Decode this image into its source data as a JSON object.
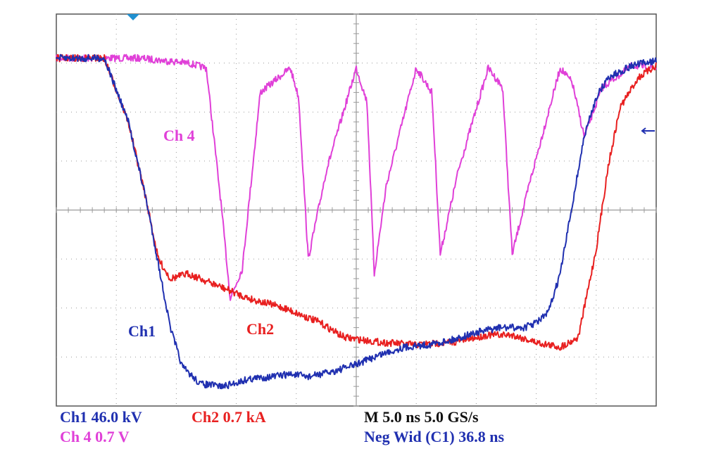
{
  "chart_data": {
    "type": "line",
    "title": "",
    "xlabel": "",
    "ylabel": "",
    "grid": true,
    "divisions": {
      "x": 10,
      "y": 8
    },
    "xlim": [
      0,
      50
    ],
    "x_unit": "ns",
    "ylim": [
      -4,
      4
    ],
    "y_unit": "div",
    "series": [
      {
        "name": "Ch 4",
        "color": "#e040d8",
        "x": [
          0,
          7,
          11,
          12.5,
          13.7,
          14.5,
          15.5,
          17,
          19.5,
          20.2,
          21,
          22.5,
          25,
          25.9,
          26.5,
          27.5,
          30,
          31.3,
          32,
          33.5,
          36,
          37.2,
          38,
          39.5,
          42,
          43,
          44,
          45.5,
          48,
          50
        ],
        "y": [
          3.1,
          3.1,
          3.0,
          2.9,
          0.2,
          -1.8,
          -1.2,
          2.4,
          2.9,
          2.3,
          -1.0,
          0.8,
          2.9,
          2.2,
          -1.3,
          0.5,
          2.9,
          2.4,
          -0.9,
          0.8,
          2.9,
          2.5,
          -0.9,
          0.6,
          2.9,
          2.6,
          1.5,
          2.5,
          2.95,
          2.9
        ]
      },
      {
        "name": "Ch2",
        "color": "#e82020",
        "x": [
          0,
          4,
          6,
          7.5,
          8.5,
          9.5,
          11,
          13,
          16,
          19,
          22,
          24,
          27,
          30,
          33,
          36,
          38,
          40,
          42,
          43.5,
          45,
          46,
          47,
          48.5,
          50
        ],
        "y": [
          3.1,
          3.1,
          1.8,
          0.2,
          -1.0,
          -1.4,
          -1.3,
          -1.5,
          -1.8,
          -2.0,
          -2.3,
          -2.6,
          -2.7,
          -2.75,
          -2.7,
          -2.55,
          -2.55,
          -2.7,
          -2.8,
          -2.6,
          -0.8,
          0.9,
          2.1,
          2.7,
          2.95
        ]
      },
      {
        "name": "Ch1",
        "color": "#2030b0",
        "x": [
          0,
          4,
          6,
          7.5,
          8.5,
          9.5,
          10.5,
          12,
          14,
          16,
          18,
          19.5,
          21,
          23,
          25,
          27,
          29,
          31,
          33,
          35,
          37,
          39,
          40,
          41,
          42,
          43,
          44,
          45,
          46,
          48,
          50
        ],
        "y": [
          3.1,
          3.1,
          1.8,
          0.2,
          -1.1,
          -2.4,
          -3.2,
          -3.55,
          -3.6,
          -3.45,
          -3.4,
          -3.35,
          -3.4,
          -3.3,
          -3.15,
          -2.95,
          -2.8,
          -2.75,
          -2.65,
          -2.5,
          -2.4,
          -2.4,
          -2.3,
          -2.1,
          -1.3,
          0.1,
          1.5,
          2.3,
          2.7,
          2.95,
          3.05
        ]
      }
    ]
  },
  "channel_labels": {
    "ch4": "Ch 4",
    "ch1": "Ch1",
    "ch2": "Ch2"
  },
  "readouts": {
    "ch1_scale": "Ch1  46.0 kV",
    "ch2_scale": "Ch2 0.7 kA",
    "ch4_scale": "Ch 4  0.7 V",
    "timebase": "M 5.0 ns 5.0 GS/s",
    "measurement": "Neg Wid (C1) 36.8 ns"
  },
  "colors": {
    "ch1": "#2030b0",
    "ch2": "#e82020",
    "ch4": "#e040d8",
    "timebase": "#111111",
    "measurement": "#2030b0",
    "grid": "#9a9a9a",
    "trigger_marker": "#2090d0"
  }
}
